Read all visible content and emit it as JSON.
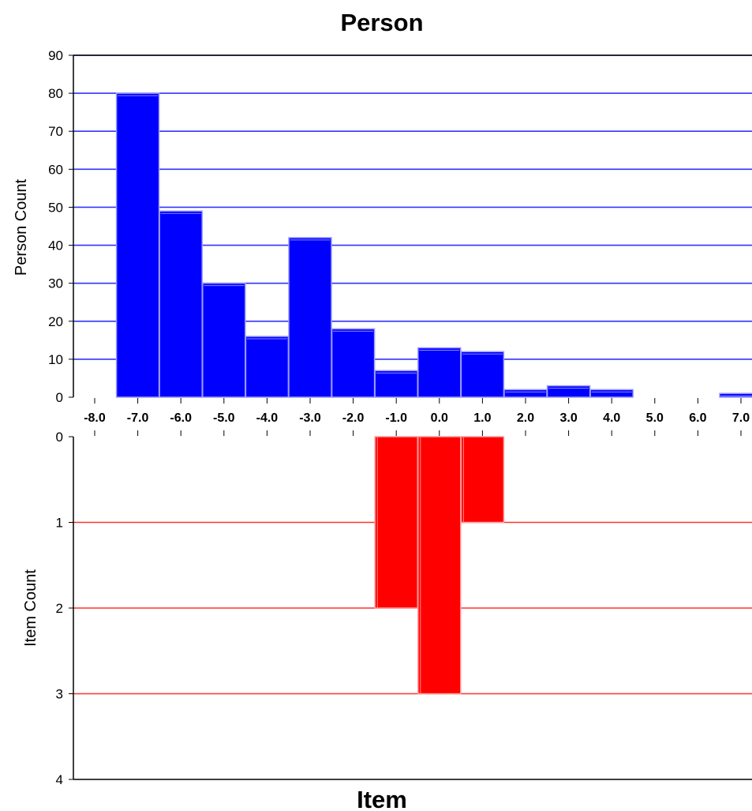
{
  "chart_data": [
    {
      "type": "bar",
      "title": "Person",
      "ylabel": "Person Count",
      "xlabel": "",
      "ylim": [
        0,
        90
      ],
      "yticks": [
        0,
        10,
        20,
        30,
        40,
        50,
        60,
        70,
        80,
        90
      ],
      "xticks": [
        "-8.0",
        "-7.0",
        "-6.0",
        "-5.0",
        "-4.0",
        "-3.0",
        "-2.0",
        "-1.0",
        "0.0",
        "1.0",
        "2.0",
        "3.0",
        "4.0",
        "5.0",
        "6.0",
        "7.0"
      ],
      "categories": [
        "-7.0",
        "-6.0",
        "-5.0",
        "-4.0",
        "-3.0",
        "-2.0",
        "-1.0",
        "0.0",
        "1.0",
        "2.0",
        "3.0",
        "4.0",
        "5.0",
        "6.0",
        "7.0"
      ],
      "values": [
        80,
        49,
        30,
        16,
        42,
        18,
        7,
        13,
        12,
        2,
        3,
        2,
        0,
        0,
        1
      ],
      "color": "#0000ff",
      "grid": true,
      "gridColor": "#3333ff"
    },
    {
      "type": "bar",
      "title": "Item",
      "ylabel": "Item Count",
      "xlabel": "",
      "ylim": [
        0,
        4
      ],
      "yticks": [
        0,
        1,
        2,
        3,
        4
      ],
      "inverted": true,
      "categories": [
        "-1.0",
        "0.0",
        "1.0"
      ],
      "values": [
        2,
        3,
        1
      ],
      "color": "#ff0000",
      "grid": true,
      "gridColor": "#ff3333"
    }
  ]
}
